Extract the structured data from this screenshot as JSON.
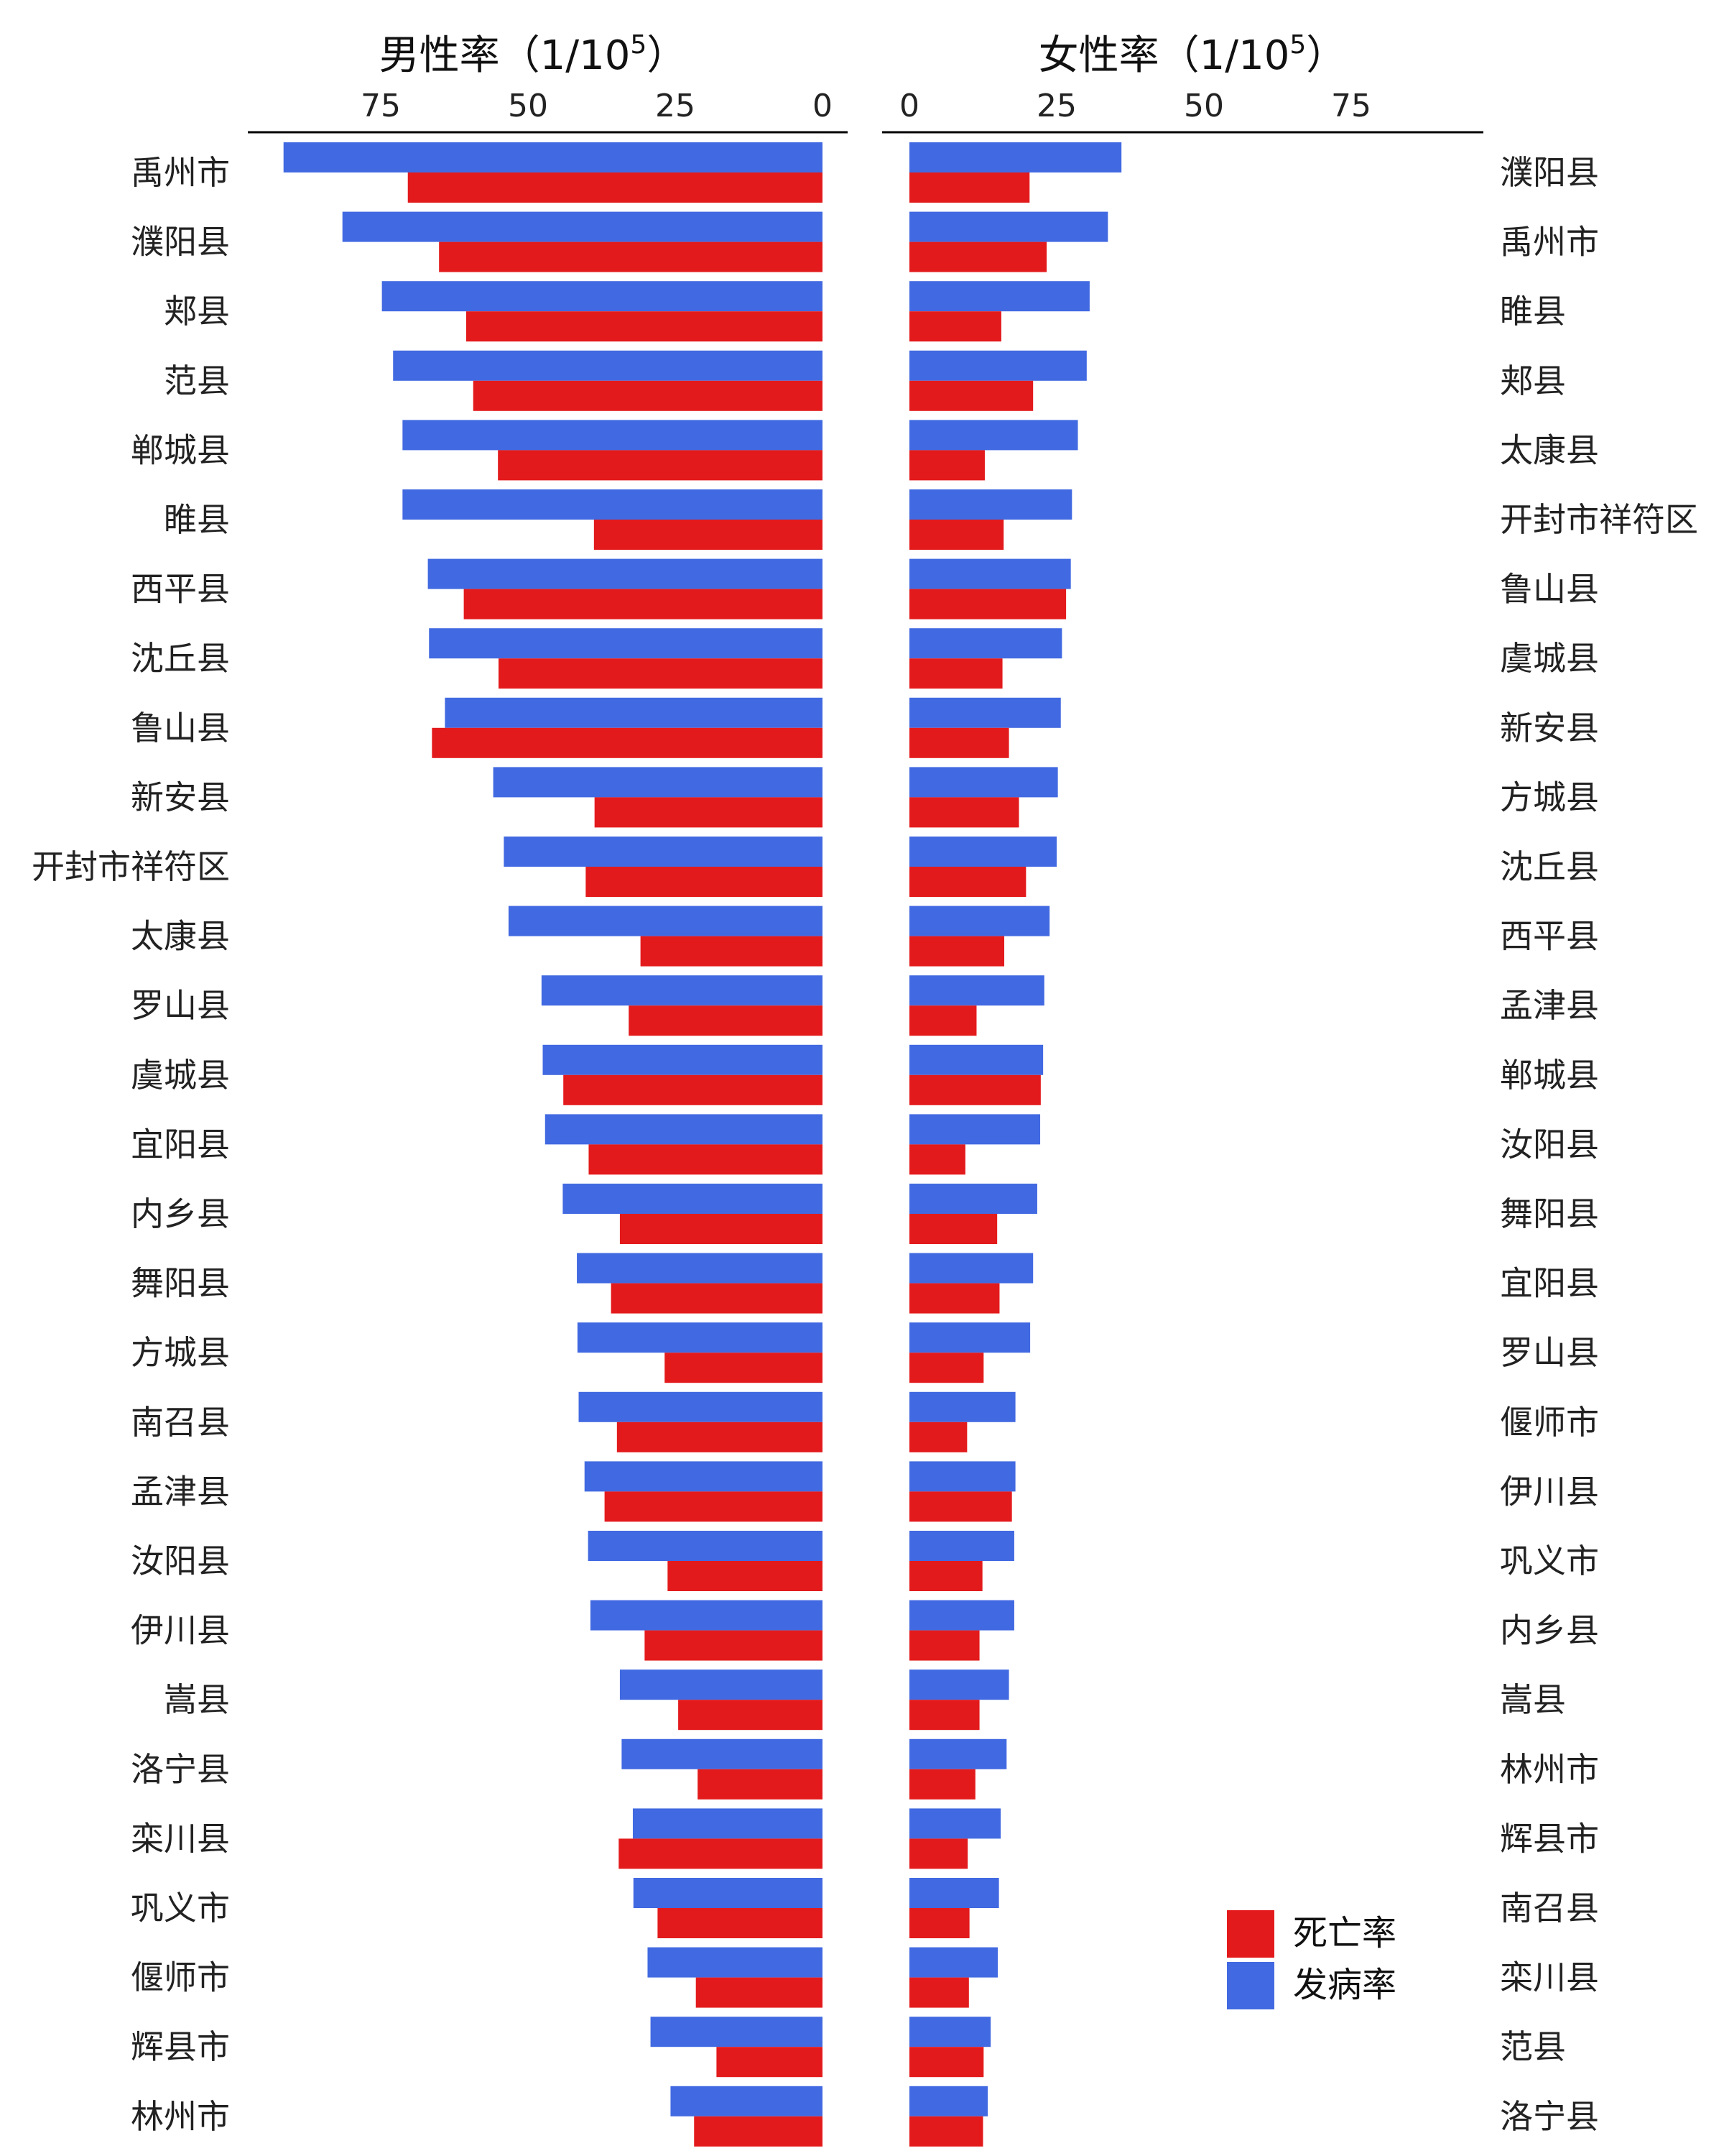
{
  "chart_data": [
    {
      "type": "bar",
      "orientation": "horizontal",
      "direction": "reversed",
      "title": "男性率（1/10⁵）",
      "title_text": "男性率（1/10",
      "title_sup": "5",
      "title_close": "）",
      "xticks": [
        75,
        50,
        25,
        0
      ],
      "xlim": [
        0,
        96
      ],
      "categories": [
        "禹州市",
        "濮阳县",
        "郏县",
        "范县",
        "郸城县",
        "睢县",
        "西平县",
        "沈丘县",
        "鲁山县",
        "新安县",
        "开封市祥符区",
        "太康县",
        "罗山县",
        "虞城县",
        "宜阳县",
        "内乡县",
        "舞阳县",
        "方城县",
        "南召县",
        "孟津县",
        "汝阳县",
        "伊川县",
        "嵩县",
        "洛宁县",
        "栾川县",
        "巩义市",
        "偃师市",
        "辉县市",
        "林州市"
      ],
      "series": [
        {
          "name": "发病率",
          "color": "#4169E1",
          "values": [
            91.5,
            81.5,
            74.8,
            72.9,
            71.3,
            71.3,
            67.0,
            66.8,
            64.1,
            55.9,
            54.1,
            53.3,
            47.7,
            47.5,
            47.1,
            44.1,
            41.7,
            41.6,
            41.4,
            40.4,
            39.8,
            39.4,
            34.4,
            34.1,
            32.2,
            32.1,
            29.7,
            29.2,
            25.8
          ]
        },
        {
          "name": "死亡率",
          "color": "#E31A1C",
          "values": [
            70.4,
            65.1,
            60.5,
            59.3,
            55.1,
            38.8,
            60.9,
            55.0,
            66.3,
            38.7,
            40.2,
            30.9,
            32.9,
            44.0,
            39.7,
            34.4,
            35.9,
            26.8,
            34.9,
            37.0,
            26.3,
            30.2,
            24.5,
            21.2,
            34.6,
            28.0,
            21.5,
            18.0,
            21.8
          ]
        }
      ]
    },
    {
      "type": "bar",
      "orientation": "horizontal",
      "title": "女性率（1/10⁵）",
      "title_text": "女性率（1/10",
      "title_sup": "5",
      "title_close": "）",
      "xticks": [
        0,
        25,
        50,
        75
      ],
      "xlim": [
        0,
        97
      ],
      "categories": [
        "濮阳县",
        "禹州市",
        "睢县",
        "郏县",
        "太康县",
        "开封市祥符区",
        "鲁山县",
        "虞城县",
        "新安县",
        "方城县",
        "沈丘县",
        "西平县",
        "孟津县",
        "郸城县",
        "汝阳县",
        "舞阳县",
        "宜阳县",
        "罗山县",
        "偃师市",
        "伊川县",
        "巩义市",
        "内乡县",
        "嵩县",
        "林州市",
        "辉县市",
        "南召县",
        "栾川县",
        "范县",
        "洛宁县"
      ],
      "series": [
        {
          "name": "发病率",
          "color": "#4169E1",
          "values": [
            36.0,
            33.7,
            30.6,
            30.1,
            28.6,
            27.6,
            27.4,
            25.9,
            25.7,
            25.2,
            25.0,
            23.8,
            22.9,
            22.7,
            22.2,
            21.7,
            21.0,
            20.5,
            18.0,
            18.0,
            17.8,
            17.8,
            16.9,
            16.5,
            15.5,
            15.2,
            15.0,
            13.8,
            13.3
          ]
        },
        {
          "name": "死亡率",
          "color": "#E31A1C",
          "values": [
            20.4,
            23.3,
            15.6,
            21.0,
            12.8,
            16.0,
            26.6,
            15.8,
            16.9,
            18.6,
            19.8,
            16.1,
            11.4,
            22.3,
            9.5,
            14.9,
            15.3,
            12.6,
            9.8,
            17.4,
            12.4,
            11.9,
            11.9,
            11.2,
            9.9,
            10.2,
            10.1,
            12.6,
            12.5
          ]
        }
      ]
    }
  ],
  "legend": {
    "items": [
      {
        "label": "死亡率",
        "color": "#E31A1C"
      },
      {
        "label": "发病率",
        "color": "#4169E1"
      }
    ]
  }
}
